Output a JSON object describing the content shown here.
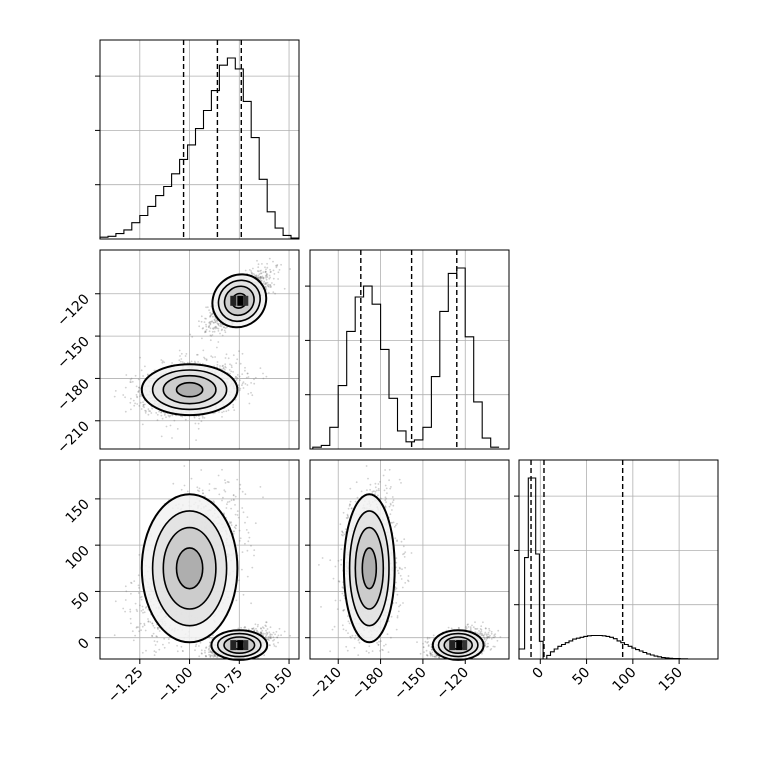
{
  "chart_data": {
    "type": "corner",
    "parameters": [
      {
        "ticks": [
          -1.25,
          -1.0,
          -0.75,
          -0.5
        ],
        "tick_labels": [
          "−1.25",
          "−1.00",
          "−0.75",
          "−0.50"
        ],
        "range": [
          -1.45,
          -0.45
        ],
        "quantiles": [
          -1.03,
          -0.86,
          -0.74
        ]
      },
      {
        "ticks": [
          -210,
          -180,
          -150,
          -120
        ],
        "tick_labels": [
          "−210",
          "−180",
          "−150",
          "−120"
        ],
        "range": [
          -230,
          -89
        ],
        "quantiles": [
          -194,
          -158,
          -126
        ]
      },
      {
        "ticks": [
          0,
          50,
          100,
          150
        ],
        "tick_labels": [
          "0",
          "50",
          "100",
          "150"
        ],
        "range": [
          -23,
          192
        ],
        "quantiles": [
          -10,
          4,
          89
        ]
      }
    ],
    "histograms": [
      {
        "param": 0,
        "bins": [
          -1.43,
          -1.39,
          -1.35,
          -1.31,
          -1.27,
          -1.23,
          -1.19,
          -1.15,
          -1.11,
          -1.07,
          -1.03,
          -0.99,
          -0.95,
          -0.91,
          -0.87,
          -0.83,
          -0.79,
          -0.75,
          -0.71,
          -0.67,
          -0.63,
          -0.59,
          -0.55,
          -0.51,
          -0.47
        ],
        "counts": [
          0.01,
          0.015,
          0.03,
          0.05,
          0.09,
          0.13,
          0.18,
          0.24,
          0.29,
          0.36,
          0.44,
          0.52,
          0.61,
          0.71,
          0.82,
          0.96,
          1.0,
          0.94,
          0.76,
          0.56,
          0.33,
          0.15,
          0.06,
          0.02,
          0.005
        ]
      },
      {
        "param": 1,
        "bins": [
          -225,
          -219,
          -213,
          -207,
          -201,
          -195,
          -189,
          -183,
          -177,
          -171,
          -165,
          -159,
          -153,
          -147,
          -141,
          -135,
          -129,
          -123,
          -117,
          -111,
          -105,
          -99
        ],
        "counts": [
          0.01,
          0.02,
          0.12,
          0.35,
          0.65,
          0.84,
          0.9,
          0.8,
          0.55,
          0.28,
          0.1,
          0.04,
          0.05,
          0.12,
          0.4,
          0.76,
          0.97,
          1.0,
          0.62,
          0.26,
          0.06,
          0.01
        ]
      },
      {
        "param": 2,
        "bins": [
          -23,
          -19,
          -15,
          -11,
          -7,
          -3,
          1,
          5,
          9,
          13,
          17,
          21,
          25,
          29,
          33,
          37,
          41,
          45,
          49,
          53,
          57,
          61,
          65,
          69,
          73,
          77,
          81,
          85,
          89,
          93,
          97,
          101,
          105,
          109,
          113,
          117,
          121,
          125,
          129,
          133,
          137,
          141,
          145,
          149,
          153,
          157,
          161,
          165,
          169,
          173
        ],
        "counts": [
          0.055,
          0.055,
          0.56,
          1.0,
          1.0,
          0.58,
          0.098,
          0.0,
          0.02,
          0.04,
          0.055,
          0.07,
          0.08,
          0.09,
          0.1,
          0.11,
          0.115,
          0.12,
          0.125,
          0.128,
          0.13,
          0.13,
          0.13,
          0.128,
          0.125,
          0.12,
          0.112,
          0.1,
          0.09,
          0.08,
          0.07,
          0.06,
          0.052,
          0.044,
          0.036,
          0.028,
          0.022,
          0.016,
          0.012,
          0.008,
          0.006,
          0.004,
          0.003,
          0.002,
          0.001,
          0.001,
          0.0,
          0.0,
          0.0,
          0.0
        ]
      }
    ],
    "modes": {
      "mode_a": {
        "p0": -0.75,
        "p1": -125,
        "p2": -8,
        "sd": [
          0.07,
          9,
          8
        ]
      },
      "mode_b": {
        "p0": -1.0,
        "p1": -188,
        "p2": 75,
        "sd": [
          0.12,
          9,
          40
        ]
      }
    },
    "grid": true
  }
}
